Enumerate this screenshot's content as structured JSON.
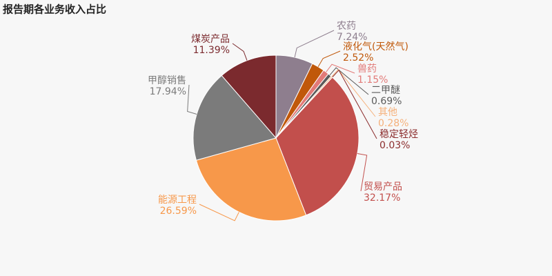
{
  "chart_data": {
    "type": "pie",
    "title": "报告期各业务收入占比",
    "categories": [
      "农药",
      "液化气(天然气)",
      "兽药",
      "二甲醚",
      "其他",
      "稳定轻烃",
      "贸易产品",
      "能源工程",
      "甲醇销售",
      "煤炭产品"
    ],
    "values": [
      7.24,
      2.52,
      1.15,
      0.69,
      0.28,
      0.03,
      32.17,
      26.59,
      17.94,
      11.39
    ],
    "value_labels": [
      "7.24%",
      "2.52%",
      "1.15%",
      "0.69%",
      "0.28%",
      "0.03%",
      "32.17%",
      "26.59%",
      "17.94%",
      "11.39%"
    ],
    "colors": [
      "#8e7e8e",
      "#c0580a",
      "#e27a78",
      "#5a5a5a",
      "#f5b07a",
      "#8b2c2c",
      "#c24f4c",
      "#f7984a",
      "#7b7b7b",
      "#7b2a2e"
    ]
  }
}
